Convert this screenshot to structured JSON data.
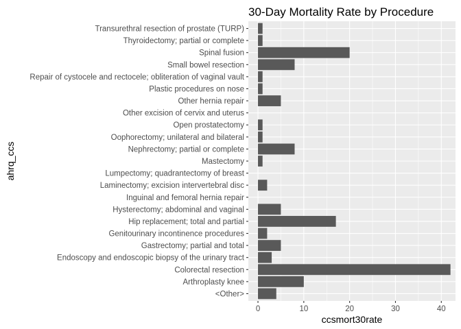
{
  "chart_data": {
    "type": "bar",
    "orientation": "horizontal",
    "title": "30-Day Mortality Rate by Procedure",
    "xlabel": "ccsmort30rate",
    "ylabel": "ahrq_ccs",
    "xlim": [
      -2.1,
      43.1
    ],
    "xticks": [
      0,
      10,
      20,
      30,
      40
    ],
    "xtick_labels": [
      "0",
      "10",
      "20",
      "30",
      "40"
    ],
    "categories": [
      "<Other>",
      "Arthroplasty knee",
      "Colorectal resection",
      "Endoscopy and endoscopic biopsy of the urinary tract",
      "Gastrectomy; partial and total",
      "Genitourinary incontinence procedures",
      "Hip replacement; total and partial",
      "Hysterectomy; abdominal and vaginal",
      "Inguinal and femoral hernia repair",
      "Laminectomy; excision intervertebral disc",
      "Lumpectomy; quadrantectomy of breast",
      "Mastectomy",
      "Nephrectomy; partial or complete",
      "Oophorectomy; unilateral and bilateral",
      "Open prostatectomy",
      "Other excision of cervix and uterus",
      "Other hernia repair",
      "Plastic procedures on nose",
      "Repair of cystocele and rectocele; obliteration of vaginal vault",
      "Small bowel resection",
      "Spinal fusion",
      "Thyroidectomy; partial or complete",
      "Transurethral resection of prostate (TURP)"
    ],
    "values": [
      4,
      10,
      42,
      3,
      5,
      2,
      17,
      5,
      0,
      2,
      0,
      1,
      8,
      1,
      1,
      0,
      5,
      1,
      1,
      8,
      20,
      1,
      1
    ],
    "bar_color": "#595959",
    "panel_color": "#ebebeb",
    "grid_color": "#ffffff",
    "grid": true,
    "legend": "none"
  }
}
